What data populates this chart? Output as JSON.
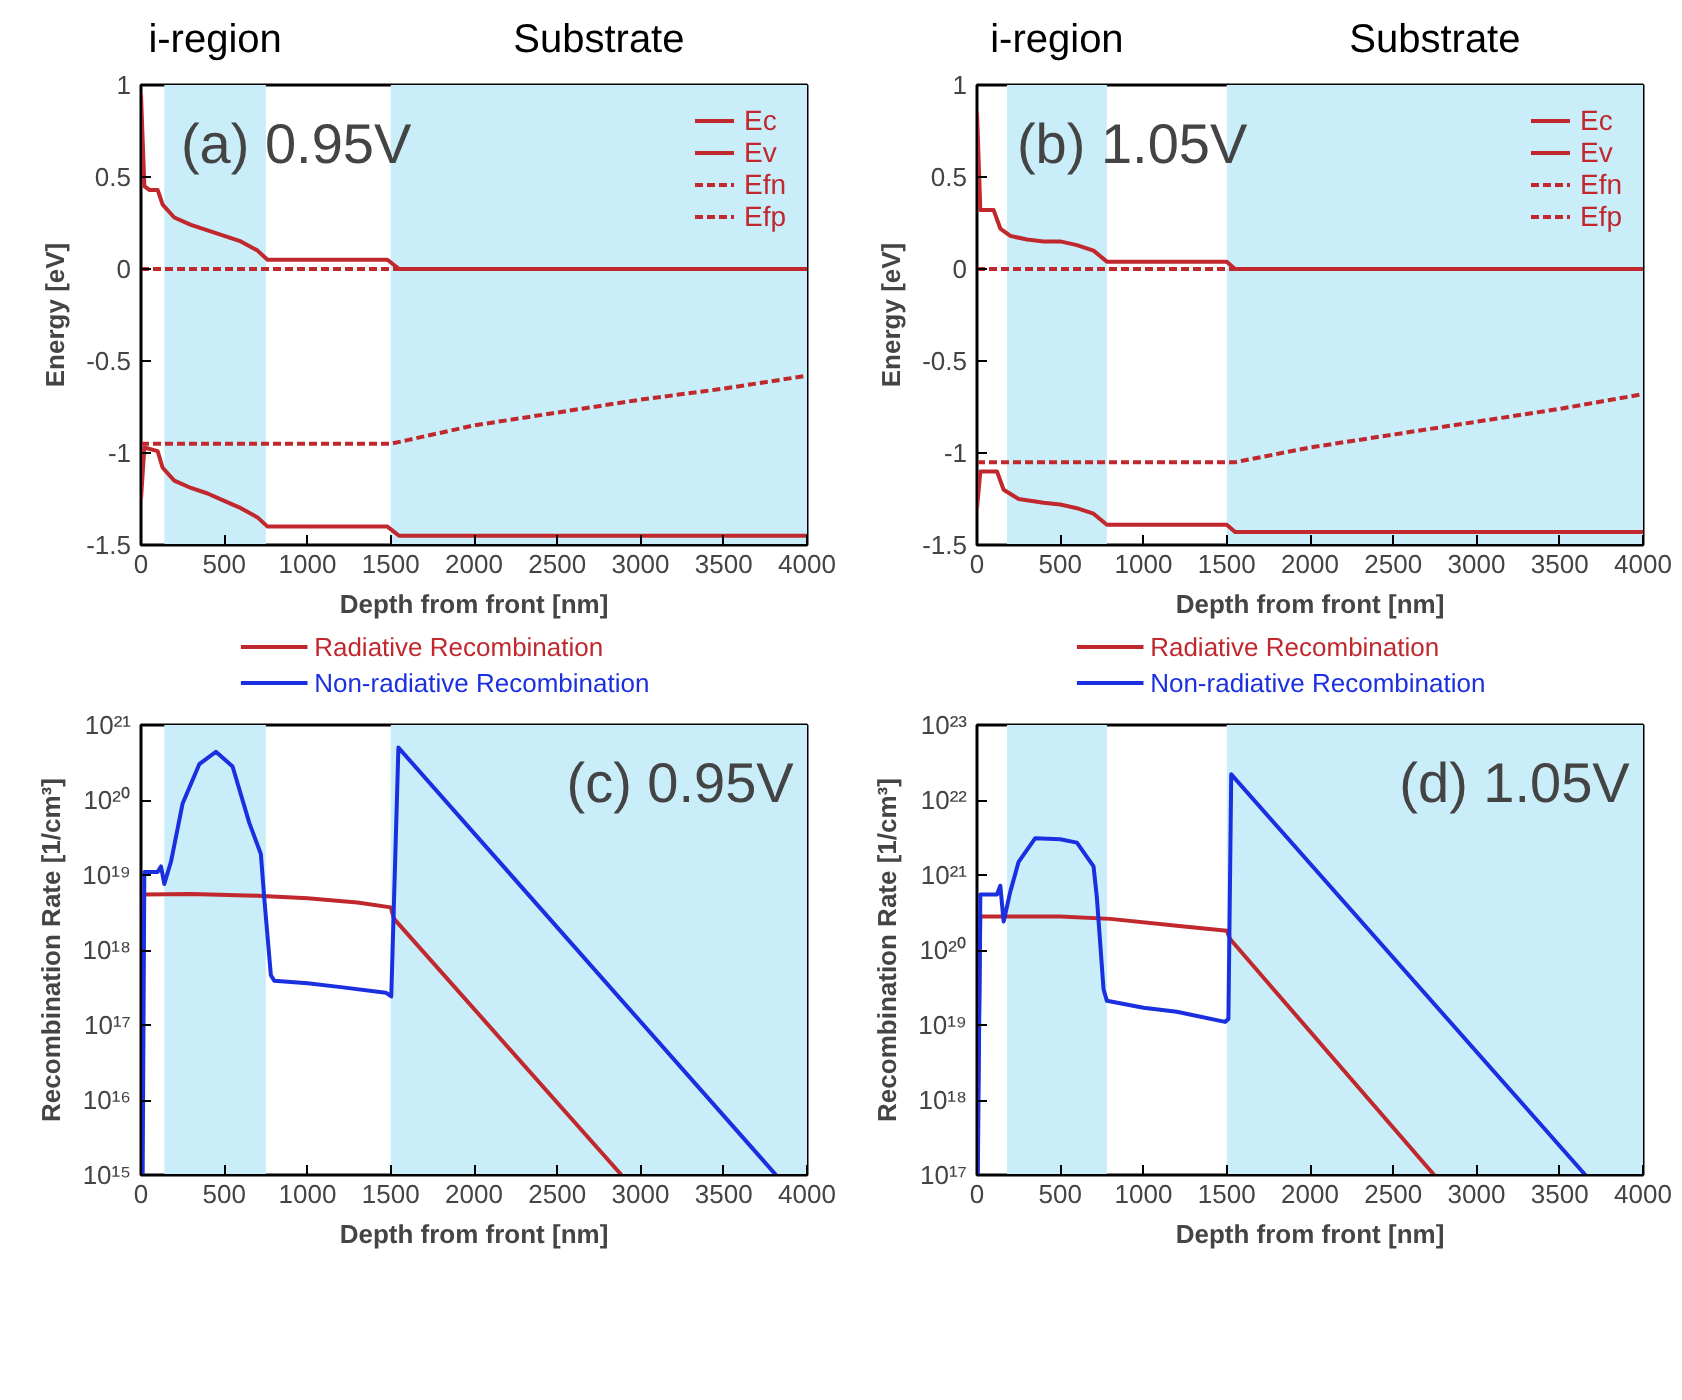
{
  "chart_data": [
    {
      "type": "line",
      "title": "(a) 0.95V",
      "xlabel": "Depth from front [nm]",
      "ylabel": "Energy [eV]",
      "xlim": [
        0,
        4000
      ],
      "xticks": [
        0,
        500,
        1000,
        1500,
        2000,
        2500,
        3000,
        3500,
        4000
      ],
      "ylim": [
        -1.5,
        1
      ],
      "yticks": [
        1,
        0.5,
        0,
        -0.5,
        -1,
        -1.5
      ],
      "grid": false,
      "legend": "top right",
      "bands": [
        {
          "axis": "x",
          "from": 140,
          "to": 750,
          "label": "i-region",
          "color": "#c9eef9"
        },
        {
          "axis": "x",
          "from": 1500,
          "to": 4000,
          "label": "Substrate",
          "color": "#c9eef9"
        }
      ],
      "series": [
        {
          "name": "Ec",
          "color": "#c0282d",
          "line_style": "solid",
          "x": [
            0,
            20,
            50,
            100,
            130,
            200,
            300,
            400,
            500,
            600,
            700,
            760,
            1480,
            1550,
            4000
          ],
          "values": [
            0.95,
            0.45,
            0.43,
            0.43,
            0.35,
            0.28,
            0.24,
            0.21,
            0.18,
            0.15,
            0.1,
            0.05,
            0.05,
            0.0,
            0.0
          ]
        },
        {
          "name": "Ev",
          "color": "#c0282d",
          "line_style": "solid",
          "x": [
            0,
            20,
            100,
            130,
            200,
            300,
            400,
            500,
            600,
            700,
            760,
            1480,
            1550,
            4000
          ],
          "values": [
            -1.25,
            -0.97,
            -0.99,
            -1.08,
            -1.15,
            -1.19,
            -1.22,
            -1.26,
            -1.3,
            -1.35,
            -1.4,
            -1.4,
            -1.45,
            -1.45
          ]
        },
        {
          "name": "Efn",
          "color": "#c0282d",
          "line_style": "dashed",
          "x": [
            0,
            4000
          ],
          "values": [
            0,
            0
          ]
        },
        {
          "name": "Efp",
          "color": "#c0282d",
          "line_style": "dashed",
          "x": [
            0,
            1500,
            1600,
            2000,
            2500,
            3000,
            3500,
            4000
          ],
          "values": [
            -0.95,
            -0.95,
            -0.93,
            -0.85,
            -0.78,
            -0.71,
            -0.65,
            -0.58
          ]
        }
      ]
    },
    {
      "type": "line",
      "title": "(b) 1.05V",
      "xlabel": "Depth from front [nm]",
      "ylabel": "Energy [eV]",
      "xlim": [
        0,
        4000
      ],
      "xticks": [
        0,
        500,
        1000,
        1500,
        2000,
        2500,
        3000,
        3500,
        4000
      ],
      "ylim": [
        -1.5,
        1
      ],
      "yticks": [
        1,
        0.5,
        0,
        -0.5,
        -1,
        -1.5
      ],
      "grid": false,
      "legend": "top right",
      "bands": [
        {
          "axis": "x",
          "from": 180,
          "to": 780,
          "label": "i-region",
          "color": "#c9eef9"
        },
        {
          "axis": "x",
          "from": 1500,
          "to": 4000,
          "label": "Substrate",
          "color": "#c9eef9"
        }
      ],
      "series": [
        {
          "name": "Ec",
          "color": "#c0282d",
          "line_style": "solid",
          "x": [
            0,
            20,
            100,
            140,
            200,
            300,
            400,
            500,
            600,
            700,
            780,
            1500,
            1550,
            4000
          ],
          "values": [
            0.85,
            0.32,
            0.32,
            0.22,
            0.18,
            0.16,
            0.15,
            0.15,
            0.13,
            0.1,
            0.04,
            0.04,
            0.0,
            0.0
          ]
        },
        {
          "name": "Ev",
          "color": "#c0282d",
          "line_style": "solid",
          "x": [
            0,
            20,
            120,
            160,
            250,
            400,
            500,
            600,
            700,
            780,
            1500,
            1550,
            4000
          ],
          "values": [
            -1.3,
            -1.1,
            -1.1,
            -1.2,
            -1.25,
            -1.27,
            -1.28,
            -1.3,
            -1.33,
            -1.39,
            -1.39,
            -1.43,
            -1.43
          ]
        },
        {
          "name": "Efn",
          "color": "#c0282d",
          "line_style": "dashed",
          "x": [
            0,
            4000
          ],
          "values": [
            0,
            0
          ]
        },
        {
          "name": "Efp",
          "color": "#c0282d",
          "line_style": "dashed",
          "x": [
            0,
            1550,
            2000,
            2500,
            3000,
            3500,
            4000
          ],
          "values": [
            -1.05,
            -1.05,
            -0.97,
            -0.9,
            -0.83,
            -0.76,
            -0.68
          ]
        }
      ]
    },
    {
      "type": "line",
      "title": "(c) 0.95V",
      "xlabel": "Depth from front [nm]",
      "ylabel": "Recombination Rate [1/cm³]",
      "xlim": [
        0,
        4000
      ],
      "xticks": [
        0,
        500,
        1000,
        1500,
        2000,
        2500,
        3000,
        3500,
        4000
      ],
      "log": "y",
      "ylim": [
        1000000000000000.0,
        1e+21
      ],
      "yticks": [
        {
          "value": 1000000000000000.0,
          "label": "10¹⁵"
        },
        {
          "value": 1e+16,
          "label": "10¹⁶"
        },
        {
          "value": 1e+17,
          "label": "10¹⁷"
        },
        {
          "value": 1e+18,
          "label": "10¹⁸"
        },
        {
          "value": 1e+19,
          "label": "10¹⁹"
        },
        {
          "value": 1e+20,
          "label": "10²⁰"
        },
        {
          "value": 1e+21,
          "label": "10²¹"
        }
      ],
      "grid": false,
      "legend": "top",
      "bands": [
        {
          "axis": "x",
          "from": 140,
          "to": 750,
          "color": "#c9eef9"
        },
        {
          "axis": "x",
          "from": 1500,
          "to": 4000,
          "color": "#c9eef9"
        }
      ],
      "series": [
        {
          "name": "Radiative Recombination",
          "color": "#c0282d",
          "line_style": "solid",
          "x": [
            0,
            15,
            300,
            700,
            1000,
            1300,
            1500,
            1520,
            2886
          ],
          "values": [
            1e+17,
            5.5e+18,
            5.6e+18,
            5.3e+18,
            4.9e+18,
            4.3e+18,
            3.7e+18,
            2.6e+18,
            1000000000000000.0
          ]
        },
        {
          "name": "Non-radiative Recombination",
          "color": "#1a2fe0",
          "line_style": "solid",
          "x": [
            10,
            20,
            100,
            120,
            140,
            180,
            250,
            350,
            450,
            550,
            650,
            720,
            740,
            780,
            800,
            1000,
            1200,
            1470,
            1503,
            1546,
            3814
          ],
          "values": [
            1000000000000000.0,
            1.1e+19,
            1.1e+19,
            1.3e+19,
            7.6e+18,
            1.5e+19,
            9e+19,
            3e+20,
            4.4e+20,
            2.8e+20,
            5e+19,
            1.9e+19,
            5e+18,
            4.6e+17,
            3.9e+17,
            3.6e+17,
            3.2e+17,
            2.7e+17,
            2.4e+17,
            5e+20,
            1000000000000000.0
          ]
        }
      ]
    },
    {
      "type": "line",
      "title": "(d) 1.05V",
      "xlabel": "Depth from front [nm]",
      "ylabel": "Recombination Rate [1/cm³]",
      "xlim": [
        0,
        4000
      ],
      "xticks": [
        0,
        500,
        1000,
        1500,
        2000,
        2500,
        3000,
        3500,
        4000
      ],
      "log": "y",
      "ylim": [
        1e+17,
        1e+23
      ],
      "yticks": [
        {
          "value": 1e+17,
          "label": "10¹⁷"
        },
        {
          "value": 1e+18,
          "label": "10¹⁸"
        },
        {
          "value": 1e+19,
          "label": "10¹⁹"
        },
        {
          "value": 1e+20,
          "label": "10²⁰"
        },
        {
          "value": 1e+21,
          "label": "10²¹"
        },
        {
          "value": 1e+22,
          "label": "10²²"
        },
        {
          "value": 1e+23,
          "label": "10²³"
        }
      ],
      "grid": false,
      "legend": "top",
      "bands": [
        {
          "axis": "x",
          "from": 180,
          "to": 780,
          "color": "#c9eef9"
        },
        {
          "axis": "x",
          "from": 1500,
          "to": 4000,
          "color": "#c9eef9"
        }
      ],
      "series": [
        {
          "name": "Radiative Recombination",
          "color": "#c0282d",
          "line_style": "solid",
          "x": [
            0,
            20,
            500,
            800,
            1200,
            1500,
            1520,
            2746
          ],
          "values": [
            1e+17,
            2.8e+20,
            2.8e+20,
            2.6e+20,
            2.1e+20,
            1.8e+20,
            1.4e+20,
            1e+17
          ]
        },
        {
          "name": "Non-radiative Recombination",
          "color": "#1a2fe0",
          "line_style": "solid",
          "x": [
            5,
            20,
            120,
            140,
            160,
            200,
            250,
            350,
            500,
            600,
            700,
            720,
            760,
            780,
            1000,
            1200,
            1490,
            1510,
            1527,
            3654
          ],
          "values": [
            1e+17,
            5.5e+20,
            5.5e+20,
            7.2e+20,
            2.4e+20,
            6e+20,
            1.5e+21,
            3.1e+21,
            3e+21,
            2.7e+21,
            1.3e+21,
            5e+20,
            3e+19,
            2.1e+19,
            1.7e+19,
            1.5e+19,
            1.1e+19,
            1.2e+19,
            2.2e+22,
            1e+17
          ]
        }
      ]
    }
  ]
}
